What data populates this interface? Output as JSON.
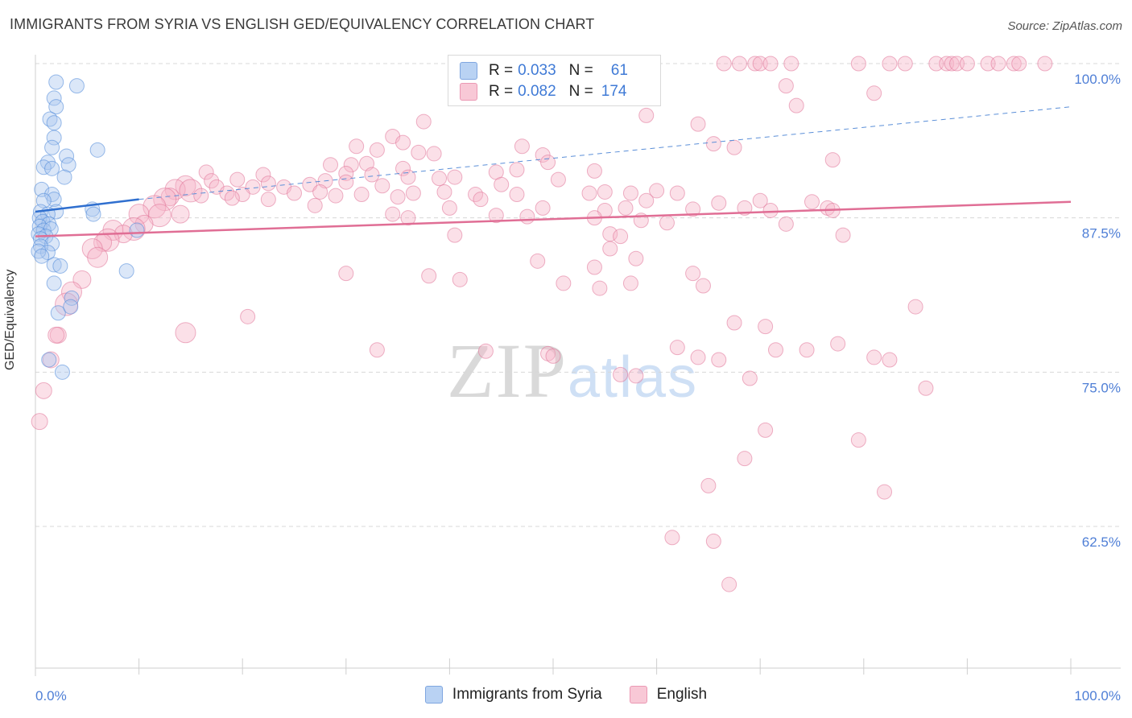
{
  "title": "IMMIGRANTS FROM SYRIA VS ENGLISH GED/EQUIVALENCY CORRELATION CHART",
  "source": "Source: ZipAtlas.com",
  "watermark_zip": "ZIP",
  "watermark_atlas": "atlas",
  "legend": {
    "rows": [
      {
        "r_label": "R =",
        "r_value": "0.033",
        "n_label": "N =",
        "n_value": "61",
        "color": "#a9c6ee"
      },
      {
        "r_label": "R =",
        "r_value": "0.082",
        "n_label": "N =",
        "n_value": "174",
        "color": "#f5b6c8"
      }
    ]
  },
  "bottom_legend": [
    {
      "label": "Immigrants from Syria",
      "color": "#a9c6ee"
    },
    {
      "label": "English",
      "color": "#f5b6c8"
    }
  ],
  "chart_data": {
    "type": "scatter",
    "title": "IMMIGRANTS FROM SYRIA VS ENGLISH GED/EQUIVALENCY CORRELATION CHART",
    "xlabel": "",
    "ylabel": "GED/Equivalency",
    "xlim": [
      0,
      100
    ],
    "ylim": [
      50.5,
      101.5
    ],
    "x_tick_labels": [
      "0.0%",
      "100.0%"
    ],
    "y_ticks": [
      62.5,
      75.0,
      87.5,
      100.0
    ],
    "y_tick_labels": [
      "62.5%",
      "75.0%",
      "87.5%",
      "100.0%"
    ],
    "grid": "horizontal dashed",
    "series": [
      {
        "name": "Immigrants from Syria",
        "color": "#4a86d8",
        "fill": "#a9c6ee",
        "trend": {
          "x": [
            0,
            10
          ],
          "y": [
            88.0,
            89.0
          ],
          "style": "solid"
        },
        "trend_extended": {
          "x": [
            10,
            100
          ],
          "y": [
            89.0,
            96.5
          ],
          "style": "dashed"
        },
        "points": [
          [
            2.0,
            98.5
          ],
          [
            4.0,
            98.2
          ],
          [
            1.8,
            97.2
          ],
          [
            2.0,
            96.5
          ],
          [
            1.4,
            95.5
          ],
          [
            1.8,
            95.2
          ],
          [
            1.8,
            94.0
          ],
          [
            1.6,
            93.2
          ],
          [
            6.0,
            93.0
          ],
          [
            3.0,
            92.5
          ],
          [
            1.2,
            92.0
          ],
          [
            3.2,
            91.8
          ],
          [
            0.8,
            91.6
          ],
          [
            1.6,
            91.5
          ],
          [
            2.8,
            90.8
          ],
          [
            0.6,
            89.8
          ],
          [
            1.6,
            89.4
          ],
          [
            1.8,
            89.0
          ],
          [
            0.8,
            88.9
          ],
          [
            5.5,
            88.2
          ],
          [
            0.5,
            88.0
          ],
          [
            2.0,
            88.0
          ],
          [
            1.2,
            87.8
          ],
          [
            0.4,
            87.5
          ],
          [
            5.6,
            87.8
          ],
          [
            0.7,
            87.2
          ],
          [
            1.3,
            87.0
          ],
          [
            0.4,
            86.8
          ],
          [
            0.8,
            86.5
          ],
          [
            1.5,
            86.6
          ],
          [
            9.8,
            86.5
          ],
          [
            0.3,
            86.2
          ],
          [
            1.0,
            86.0
          ],
          [
            0.5,
            85.8
          ],
          [
            1.6,
            85.4
          ],
          [
            0.5,
            85.2
          ],
          [
            1.2,
            84.7
          ],
          [
            0.3,
            84.8
          ],
          [
            0.6,
            84.4
          ],
          [
            1.8,
            83.7
          ],
          [
            2.4,
            83.6
          ],
          [
            8.8,
            83.2
          ],
          [
            1.8,
            82.2
          ],
          [
            3.5,
            81.0
          ],
          [
            2.2,
            79.8
          ],
          [
            3.4,
            80.3
          ],
          [
            1.3,
            76.0
          ],
          [
            2.6,
            75.0
          ]
        ]
      },
      {
        "name": "English",
        "color": "#e07398",
        "fill": "#f5b6c8",
        "trend": {
          "x": [
            0,
            100
          ],
          "y": [
            86.0,
            88.8
          ],
          "style": "solid"
        },
        "points": [
          [
            66.5,
            100.0
          ],
          [
            68.0,
            100.0
          ],
          [
            69.5,
            100.0
          ],
          [
            70.0,
            100.0
          ],
          [
            71.0,
            100.0
          ],
          [
            73.0,
            100.0
          ],
          [
            79.5,
            100.0
          ],
          [
            82.5,
            100.0
          ],
          [
            84.0,
            100.0
          ],
          [
            87.0,
            100.0
          ],
          [
            88.0,
            100.0
          ],
          [
            88.5,
            100.0
          ],
          [
            89.0,
            100.0
          ],
          [
            90.0,
            100.0
          ],
          [
            92.0,
            100.0
          ],
          [
            93.0,
            100.0
          ],
          [
            94.5,
            100.0
          ],
          [
            95.0,
            100.0
          ],
          [
            97.5,
            100.0
          ],
          [
            72.5,
            98.2
          ],
          [
            81.0,
            97.6
          ],
          [
            73.5,
            96.6
          ],
          [
            37.5,
            95.3
          ],
          [
            59.0,
            95.8
          ],
          [
            64.0,
            95.1
          ],
          [
            34.5,
            94.1
          ],
          [
            65.5,
            93.5
          ],
          [
            67.5,
            93.2
          ],
          [
            31.0,
            93.3
          ],
          [
            35.5,
            93.6
          ],
          [
            47.0,
            93.3
          ],
          [
            33.0,
            93.0
          ],
          [
            37.0,
            92.8
          ],
          [
            38.5,
            92.7
          ],
          [
            49.0,
            92.6
          ],
          [
            49.5,
            92.0
          ],
          [
            77.0,
            92.2
          ],
          [
            28.5,
            91.8
          ],
          [
            30.5,
            91.8
          ],
          [
            32.0,
            91.9
          ],
          [
            35.5,
            91.5
          ],
          [
            44.5,
            91.2
          ],
          [
            46.5,
            91.4
          ],
          [
            54.0,
            91.3
          ],
          [
            16.5,
            91.2
          ],
          [
            22.0,
            91.0
          ],
          [
            30.0,
            91.1
          ],
          [
            32.5,
            91.0
          ],
          [
            36.0,
            90.8
          ],
          [
            39.0,
            90.7
          ],
          [
            40.5,
            90.8
          ],
          [
            50.5,
            90.6
          ],
          [
            17.0,
            90.5
          ],
          [
            19.5,
            90.6
          ],
          [
            22.5,
            90.3
          ],
          [
            26.5,
            90.2
          ],
          [
            28.0,
            90.5
          ],
          [
            30.0,
            90.4
          ],
          [
            14.5,
            90.1
          ],
          [
            17.5,
            90.0
          ],
          [
            21.0,
            90.0
          ],
          [
            24.0,
            90.0
          ],
          [
            33.5,
            90.1
          ],
          [
            45.0,
            90.2
          ],
          [
            13.5,
            89.8
          ],
          [
            15.0,
            89.7
          ],
          [
            18.5,
            89.5
          ],
          [
            20.0,
            89.4
          ],
          [
            25.0,
            89.5
          ],
          [
            27.5,
            89.6
          ],
          [
            29.0,
            89.3
          ],
          [
            31.5,
            89.4
          ],
          [
            36.5,
            89.5
          ],
          [
            39.5,
            89.6
          ],
          [
            42.5,
            89.4
          ],
          [
            46.5,
            89.4
          ],
          [
            53.5,
            89.5
          ],
          [
            55.0,
            89.6
          ],
          [
            57.5,
            89.5
          ],
          [
            60.0,
            89.7
          ],
          [
            62.0,
            89.5
          ],
          [
            13.0,
            89.2
          ],
          [
            16.0,
            89.3
          ],
          [
            12.5,
            89.0
          ],
          [
            19.0,
            89.1
          ],
          [
            22.5,
            89.0
          ],
          [
            35.0,
            89.2
          ],
          [
            43.0,
            89.0
          ],
          [
            59.0,
            88.9
          ],
          [
            66.0,
            88.7
          ],
          [
            70.0,
            88.9
          ],
          [
            75.0,
            88.8
          ],
          [
            11.5,
            88.4
          ],
          [
            27.0,
            88.5
          ],
          [
            40.0,
            88.3
          ],
          [
            49.0,
            88.3
          ],
          [
            55.0,
            88.1
          ],
          [
            57.0,
            88.3
          ],
          [
            63.5,
            88.2
          ],
          [
            68.5,
            88.3
          ],
          [
            71.0,
            88.1
          ],
          [
            76.5,
            88.3
          ],
          [
            77.0,
            88.1
          ],
          [
            10.0,
            87.8
          ],
          [
            12.0,
            87.7
          ],
          [
            14.0,
            87.8
          ],
          [
            34.5,
            87.8
          ],
          [
            47.5,
            87.6
          ],
          [
            36.0,
            87.5
          ],
          [
            44.5,
            87.7
          ],
          [
            54.0,
            87.5
          ],
          [
            58.5,
            87.3
          ],
          [
            61.0,
            87.1
          ],
          [
            72.5,
            87.0
          ],
          [
            10.5,
            87.0
          ],
          [
            7.5,
            86.5
          ],
          [
            9.5,
            86.6
          ],
          [
            8.5,
            86.2
          ],
          [
            40.5,
            86.1
          ],
          [
            55.5,
            86.2
          ],
          [
            56.5,
            86.0
          ],
          [
            78.0,
            86.1
          ],
          [
            7.0,
            85.7
          ],
          [
            6.5,
            85.5
          ],
          [
            5.5,
            85.0
          ],
          [
            55.5,
            85.0
          ],
          [
            58.0,
            84.2
          ],
          [
            6.0,
            84.3
          ],
          [
            48.5,
            84.0
          ],
          [
            54.0,
            83.5
          ],
          [
            63.5,
            83.0
          ],
          [
            30.0,
            83.0
          ],
          [
            38.0,
            82.8
          ],
          [
            41.0,
            82.5
          ],
          [
            51.0,
            82.2
          ],
          [
            54.5,
            81.8
          ],
          [
            57.5,
            82.2
          ],
          [
            64.5,
            82.0
          ],
          [
            4.5,
            82.5
          ],
          [
            3.5,
            81.5
          ],
          [
            3.0,
            80.5
          ],
          [
            85.0,
            80.3
          ],
          [
            20.5,
            79.5
          ],
          [
            67.5,
            79.0
          ],
          [
            70.5,
            78.7
          ],
          [
            14.5,
            78.2
          ],
          [
            2.2,
            78.0
          ],
          [
            2.0,
            78.0
          ],
          [
            62.0,
            77.0
          ],
          [
            71.5,
            76.8
          ],
          [
            74.5,
            76.8
          ],
          [
            77.5,
            77.3
          ],
          [
            33.0,
            76.8
          ],
          [
            43.5,
            76.7
          ],
          [
            49.5,
            76.5
          ],
          [
            50.0,
            76.3
          ],
          [
            64.0,
            76.2
          ],
          [
            66.0,
            76.0
          ],
          [
            81.0,
            76.2
          ],
          [
            82.5,
            76.0
          ],
          [
            1.5,
            76.0
          ],
          [
            56.5,
            74.8
          ],
          [
            58.0,
            74.7
          ],
          [
            69.0,
            74.5
          ],
          [
            86.0,
            73.7
          ],
          [
            0.8,
            73.5
          ],
          [
            0.4,
            71.0
          ],
          [
            70.5,
            70.3
          ],
          [
            79.5,
            69.5
          ],
          [
            68.5,
            68.0
          ],
          [
            65.0,
            65.8
          ],
          [
            82.0,
            65.3
          ],
          [
            61.5,
            61.6
          ],
          [
            65.5,
            61.3
          ],
          [
            67.0,
            57.8
          ]
        ]
      }
    ]
  }
}
